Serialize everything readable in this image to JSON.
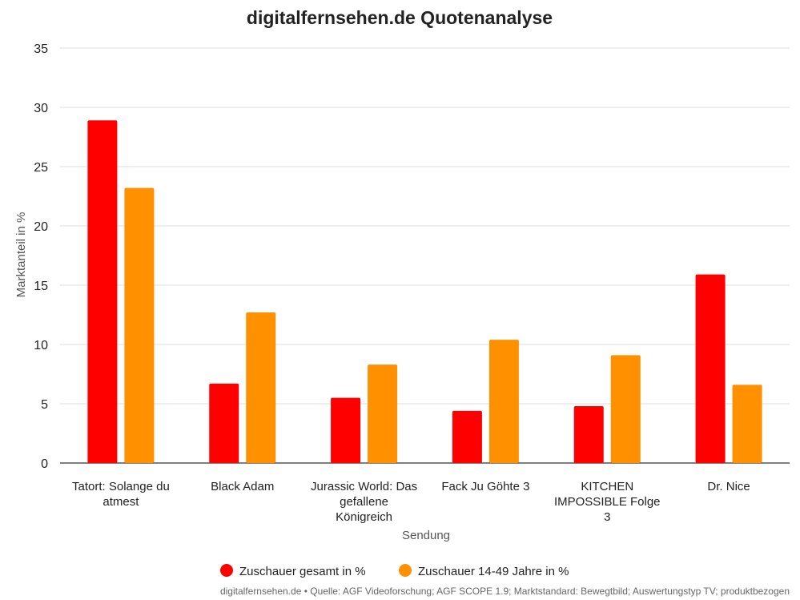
{
  "chart_data": {
    "type": "bar",
    "title": "digitalfernsehen.de Quotenanalyse",
    "xlabel": "Sendung",
    "ylabel": "Marktanteil in %",
    "ylim": [
      0,
      35
    ],
    "yticks": [
      0,
      5,
      10,
      15,
      20,
      25,
      30,
      35
    ],
    "grid": true,
    "legend_position": "bottom",
    "categories": [
      [
        "Tatort: Solange du",
        "atmest"
      ],
      [
        "Black Adam"
      ],
      [
        "Jurassic World: Das",
        "gefallene",
        "Königreich"
      ],
      [
        "Fack Ju Göhte 3"
      ],
      [
        "KITCHEN",
        "IMPOSSIBLE Folge",
        "3"
      ],
      [
        "Dr. Nice"
      ]
    ],
    "series": [
      {
        "name": "Zuschauer gesamt in %",
        "color": "#ff0000",
        "values": [
          28.9,
          6.7,
          5.5,
          4.4,
          4.8,
          15.9
        ]
      },
      {
        "name": "Zuschauer 14-49 Jahre in %",
        "color": "#ff9000",
        "values": [
          23.2,
          12.7,
          8.3,
          10.4,
          9.1,
          6.6
        ]
      }
    ],
    "source": "digitalfernsehen.de • Quelle: AGF Videoforschung; AGF SCOPE 1.9; Marktstandard: Bewegtbild; Auswertungstyp TV; produktbezogen"
  }
}
